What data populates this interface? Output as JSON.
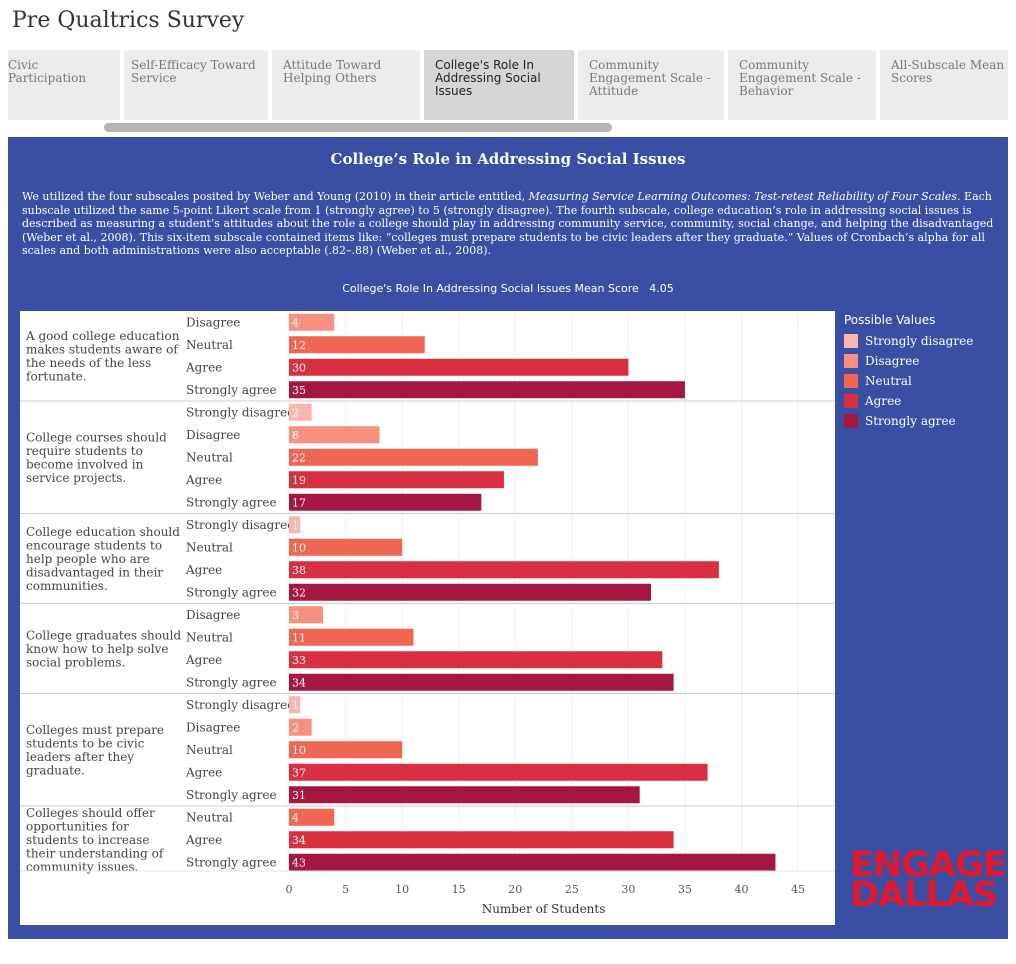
{
  "page_title": "Pre Qualtrics Survey",
  "tabs": [
    {
      "lines": [
        "Civic Participation"
      ]
    },
    {
      "lines": [
        "Self-Efficacy Toward",
        "Service"
      ]
    },
    {
      "lines": [
        "Attitude Toward",
        "Helping Others"
      ]
    },
    {
      "lines": [
        "College's Role In",
        "Addressing Social Issues"
      ],
      "active": true
    },
    {
      "lines": [
        "Community",
        "Engagement Scale -",
        "Attitude"
      ]
    },
    {
      "lines": [
        "Community",
        "Engagement Scale -",
        "Behavior"
      ]
    },
    {
      "lines": [
        "All-Subscale Mean",
        "Scores"
      ]
    }
  ],
  "panel": {
    "title": "College’s Role in Addressing Social Issues",
    "desc_part1": "We utilized the four subscales posited by Weber and Young (2010) in their article entitled, ",
    "desc_italic": "Measuring Service Learning Outcomes: Test-retest Reliability of Four Scales",
    "desc_part2": ". Each subscale utilized the same 5-point Likert scale from 1 (strongly agree) to 5 (strongly disagree). The fourth subscale, college education’s role in addressing social issues is described as measuring a student’s attitudes about the role a college should play in addressing community service, community, social change, and helping the disadvantaged (Weber et al., 2008). This six-item subscale contained items like: “colleges must prepare students to be civic leaders after they graduate.” Values of Cronbach’s alpha for all scales and both administrations were also acceptable (.82–.88) (Weber et al., 2008).",
    "mean_label": "College's Role In Addressing Social Issues Mean Score",
    "mean_value": "4.05"
  },
  "legend": {
    "title": "Possible  Values",
    "items": [
      {
        "label": "Strongly disagree",
        "color": "#f8b6b0"
      },
      {
        "label": "Disagree",
        "color": "#f7907f"
      },
      {
        "label": "Neutral",
        "color": "#ef6653"
      },
      {
        "label": "Agree",
        "color": "#d92f41"
      },
      {
        "label": "Strongly agree",
        "color": "#a51740"
      }
    ]
  },
  "logo": {
    "line1": "ENGAGE",
    "line2": "DALLAS"
  },
  "chart_data": {
    "type": "bar",
    "orientation": "horizontal",
    "xlabel": "Number of Students",
    "xlim": [
      0,
      45
    ],
    "xticks": [
      0,
      5,
      10,
      15,
      20,
      25,
      30,
      35,
      40,
      45
    ],
    "groups": [
      {
        "label": "A good college education makes students aware of the needs of the less fortunate.",
        "bars": [
          {
            "cat": "Disagree",
            "value": 4
          },
          {
            "cat": "Neutral",
            "value": 12
          },
          {
            "cat": "Agree",
            "value": 30
          },
          {
            "cat": "Strongly agree",
            "value": 35
          }
        ]
      },
      {
        "label": "College courses should require students to become involved in service projects.",
        "bars": [
          {
            "cat": "Strongly disagree",
            "value": 2
          },
          {
            "cat": "Disagree",
            "value": 8
          },
          {
            "cat": "Neutral",
            "value": 22
          },
          {
            "cat": "Agree",
            "value": 19
          },
          {
            "cat": "Strongly agree",
            "value": 17
          }
        ]
      },
      {
        "label": "College education should encourage students to help people who are disadvantaged in their communities.",
        "bars": [
          {
            "cat": "Strongly disagree",
            "value": 1
          },
          {
            "cat": "Neutral",
            "value": 10
          },
          {
            "cat": "Agree",
            "value": 38
          },
          {
            "cat": "Strongly agree",
            "value": 32
          }
        ]
      },
      {
        "label": "College graduates should know how to help solve social problems.",
        "bars": [
          {
            "cat": "Disagree",
            "value": 3
          },
          {
            "cat": "Neutral",
            "value": 11
          },
          {
            "cat": "Agree",
            "value": 33
          },
          {
            "cat": "Strongly agree",
            "value": 34
          }
        ]
      },
      {
        "label": "Colleges must prepare students to be civic leaders after they graduate.",
        "bars": [
          {
            "cat": "Strongly disagree",
            "value": 1
          },
          {
            "cat": "Disagree",
            "value": 2
          },
          {
            "cat": "Neutral",
            "value": 10
          },
          {
            "cat": "Agree",
            "value": 37
          },
          {
            "cat": "Strongly agree",
            "value": 31
          }
        ]
      },
      {
        "label": "Colleges should offer opportunities for students to increase their understanding of community issues.",
        "bars": [
          {
            "cat": "Neutral",
            "value": 4
          },
          {
            "cat": "Agree",
            "value": 34
          },
          {
            "cat": "Strongly agree",
            "value": 43
          }
        ]
      }
    ]
  }
}
